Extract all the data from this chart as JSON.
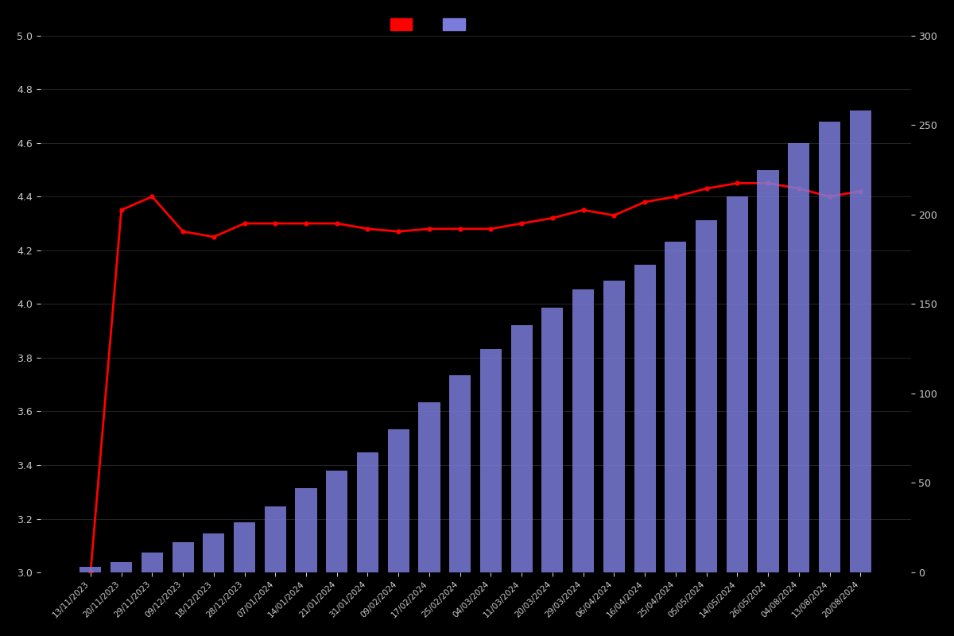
{
  "dates": [
    "13/11/2023",
    "20/11/2023",
    "29/11/2023",
    "09/12/2023",
    "18/12/2023",
    "28/12/2023",
    "07/01/2024",
    "14/01/2024",
    "21/01/2024",
    "31/01/2024",
    "09/02/2024",
    "17/02/2024",
    "25/02/2024",
    "04/03/2024",
    "11/03/2024",
    "20/03/2024",
    "29/03/2024",
    "06/04/2024",
    "16/04/2024",
    "25/04/2024",
    "05/05/2024",
    "14/05/2024",
    "26/05/2024",
    "04/08/2024",
    "13/08/2024",
    "20/08/2024"
  ],
  "ratings": [
    3.0,
    4.35,
    4.4,
    4.27,
    4.25,
    4.3,
    4.3,
    4.3,
    4.3,
    4.28,
    4.27,
    4.28,
    4.28,
    4.28,
    4.3,
    4.32,
    4.35,
    4.33,
    4.38,
    4.4,
    4.43,
    4.45,
    4.45,
    4.43,
    4.4,
    4.42
  ],
  "counts": [
    3,
    6,
    11,
    17,
    22,
    28,
    37,
    47,
    57,
    67,
    80,
    95,
    110,
    125,
    138,
    148,
    158,
    163,
    172,
    185,
    197,
    210,
    225,
    240,
    252,
    258
  ],
  "bar_color": "#7b7bdb",
  "line_color": "#ff0000",
  "background_color": "#000000",
  "text_color": "#cccccc",
  "ylim_left": [
    3.0,
    5.0
  ],
  "ylim_right": [
    0,
    300
  ],
  "yticks_left": [
    3.0,
    3.2,
    3.4,
    3.6,
    3.8,
    4.0,
    4.2,
    4.4,
    4.6,
    4.8,
    5.0
  ],
  "yticks_right": [
    0,
    50,
    100,
    150,
    200,
    250,
    300
  ]
}
